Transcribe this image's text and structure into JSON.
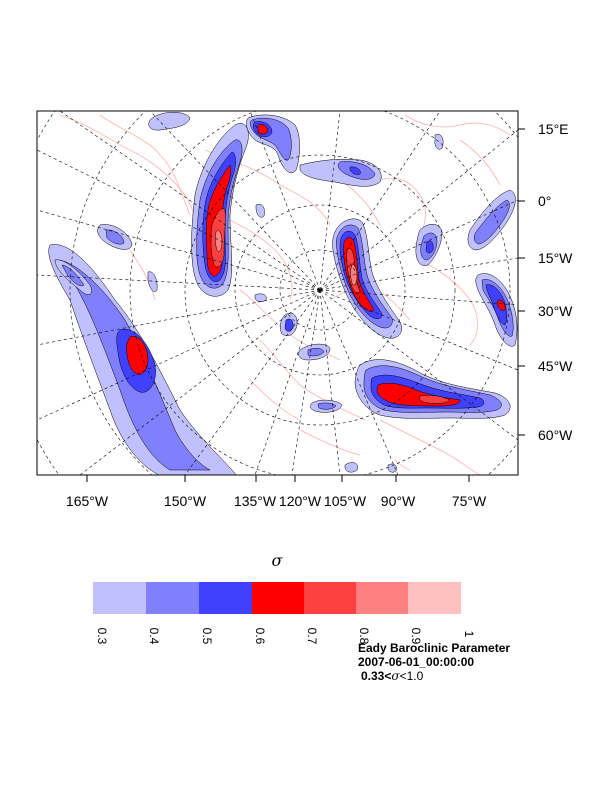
{
  "map": {
    "right_axis_labels": [
      "15°E",
      "0°",
      "15°W",
      "30°W",
      "45°W",
      "60°W"
    ],
    "bottom_axis_labels": [
      "165°W",
      "150°W",
      "135°W",
      "120°W",
      "105°W",
      "90°W",
      "75°W"
    ]
  },
  "colorbar": {
    "symbol": "σ",
    "ticks": [
      "0.3",
      "0.4",
      "0.5",
      "0.6",
      "0.7",
      "0.8",
      "0.9",
      "1"
    ],
    "colors": [
      "#c0c0ff",
      "#8080ff",
      "#4040ff",
      "#ff0000",
      "#ff4040",
      "#ff8080",
      "#ffc0c0"
    ]
  },
  "caption": {
    "title": "Eady Baroclinic Parameter",
    "date": "2007-06-01_00:00:00",
    "range_prefix": "0.33<",
    "range_symbol": "σ",
    "range_suffix": "<1.0"
  },
  "colors": {
    "coast": "#ffb0b0",
    "grid": "#000000"
  }
}
